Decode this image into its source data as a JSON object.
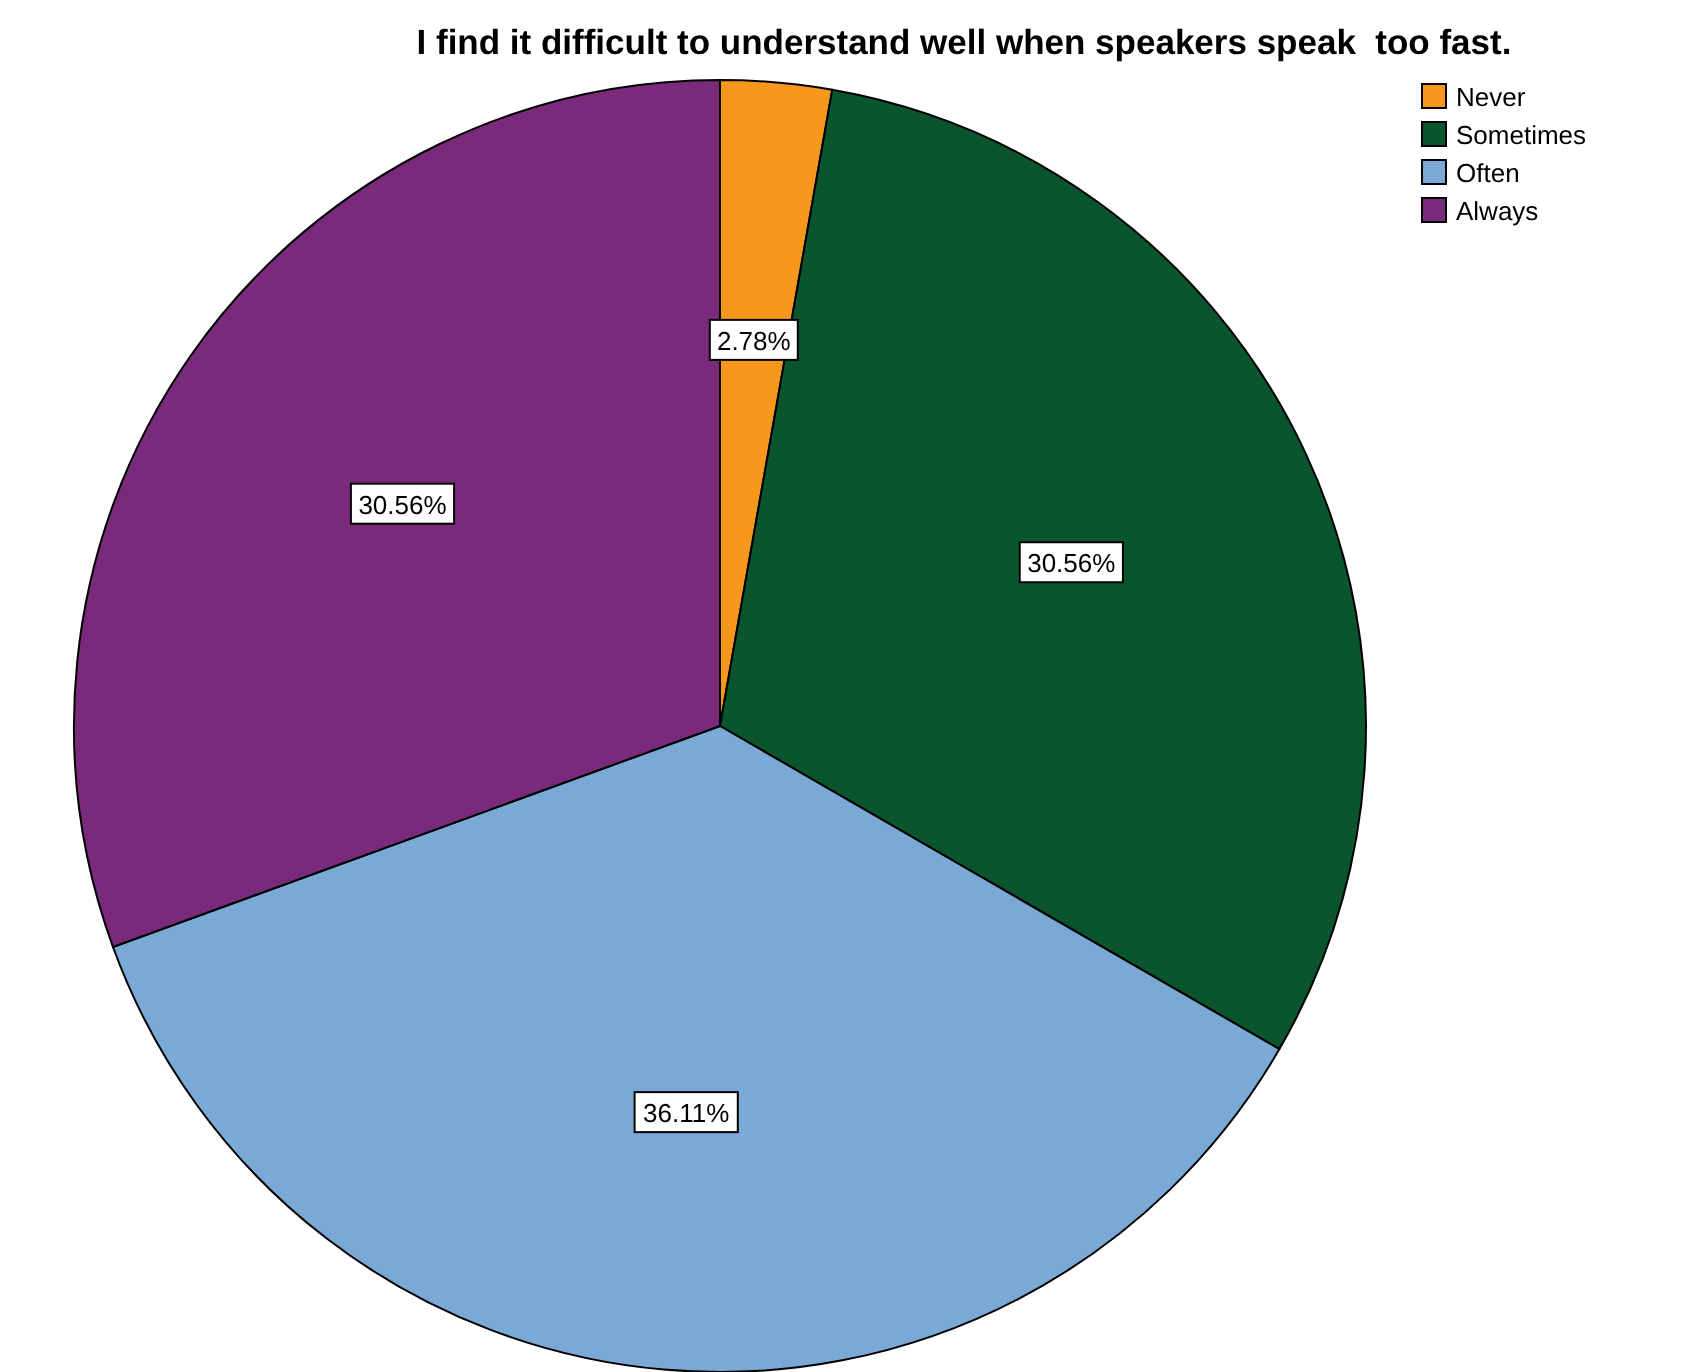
{
  "chart_data": {
    "type": "pie",
    "title": "I find it difficult to understand well when speakers speak  too fast.",
    "categories": [
      "Never",
      "Sometimes",
      "Often",
      "Always"
    ],
    "values": [
      2.78,
      30.56,
      36.11,
      30.56
    ],
    "colors": [
      "#f7981d",
      "#0a552d",
      "#7aa9d6",
      "#7a2a7a"
    ],
    "value_labels": [
      "2.78%",
      "30.56%",
      "36.11%",
      "30.56%"
    ],
    "legend": "top right"
  }
}
